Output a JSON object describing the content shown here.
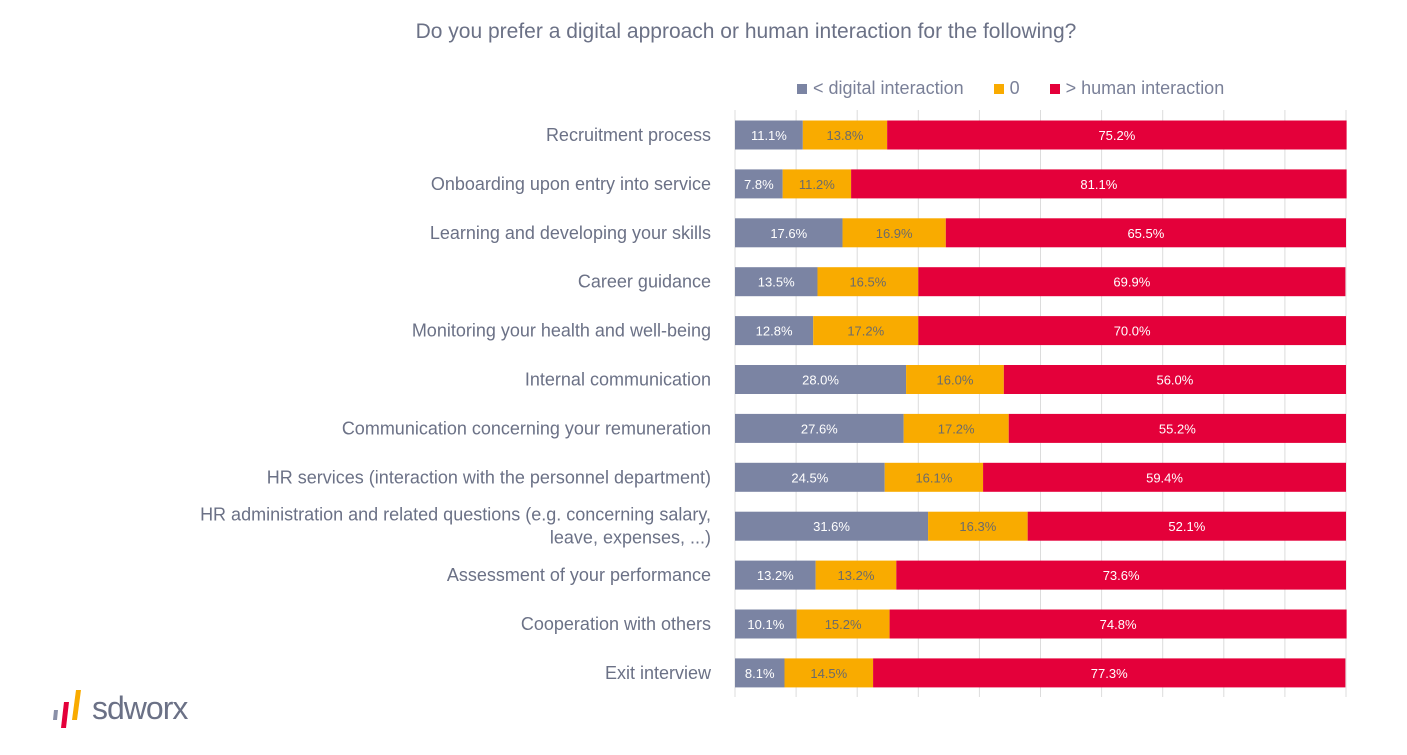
{
  "chart_data": {
    "type": "bar",
    "orientation": "horizontal",
    "stacked": true,
    "title": "Do you prefer a digital approach or human interaction for the following?",
    "xlim": [
      0,
      100
    ],
    "grid": true,
    "legend_position": "top",
    "categories": [
      "Recruitment process",
      "Onboarding upon entry into service",
      "Learning and developing your skills",
      "Career guidance",
      "Monitoring your health and well-being",
      "Internal communication",
      "Communication concerning your remuneration",
      "HR services (interaction with the personnel department)",
      "HR administration and related questions (e.g. concerning salary,\nleave, expenses, ...)",
      "Assessment of your performance",
      "Cooperation with others",
      "Exit interview"
    ],
    "series": [
      {
        "name": "< digital interaction",
        "color": "#7b84a3",
        "label_color": "#ffffff",
        "values": [
          11.1,
          7.8,
          17.6,
          13.5,
          12.8,
          28.0,
          27.6,
          24.5,
          31.6,
          13.2,
          10.1,
          8.1
        ]
      },
      {
        "name": "0",
        "color": "#f9ab00",
        "label_color": "#6b6b6b",
        "values": [
          13.8,
          11.2,
          16.9,
          16.5,
          17.2,
          16.0,
          17.2,
          16.1,
          16.3,
          13.2,
          15.2,
          14.5
        ]
      },
      {
        "name": "> human interaction",
        "color": "#e4003a",
        "label_color": "#ffffff",
        "values": [
          75.2,
          81.1,
          65.5,
          69.9,
          70.0,
          56.0,
          55.2,
          59.4,
          52.1,
          73.6,
          74.8,
          77.3
        ]
      }
    ]
  },
  "logo": {
    "text": "sdworx"
  }
}
